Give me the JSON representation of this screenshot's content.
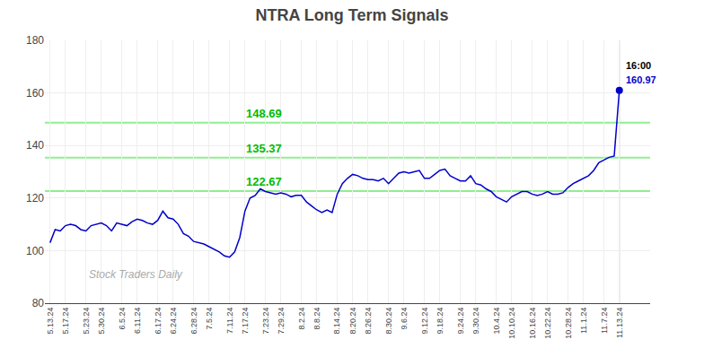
{
  "chart_data": {
    "type": "line",
    "title": "NTRA Long Term Signals",
    "categories": [
      "5.13.24",
      null,
      null,
      "5.17.24",
      null,
      null,
      null,
      "5.23.24",
      null,
      null,
      "5.30.24",
      null,
      null,
      null,
      "6.5.24",
      null,
      null,
      "6.11.24",
      null,
      null,
      null,
      "6.17.24",
      null,
      null,
      "6.24.24",
      null,
      null,
      null,
      "6.28.24",
      null,
      null,
      "7.5.24",
      null,
      null,
      null,
      "7.11.24",
      null,
      null,
      "7.17.24",
      null,
      null,
      null,
      "7.23.24",
      null,
      null,
      "7.29.24",
      null,
      null,
      null,
      "8.2.24",
      null,
      null,
      "8.8.24",
      null,
      null,
      null,
      "8.14.24",
      null,
      null,
      "8.20.24",
      null,
      null,
      "8.26.24",
      null,
      null,
      null,
      "8.30.24",
      null,
      null,
      "9.6.24",
      null,
      null,
      null,
      "9.12.24",
      null,
      null,
      "9.18.24",
      null,
      null,
      null,
      "9.24.24",
      null,
      null,
      "9.30.24",
      null,
      null,
      null,
      "10.4.24",
      null,
      null,
      "10.10.24",
      null,
      null,
      null,
      "10.16.24",
      null,
      null,
      "10.22.24",
      null,
      null,
      null,
      "10.28.24",
      null,
      null,
      "11.1.24",
      null,
      null,
      null,
      "11.7.24",
      null,
      null,
      "11.13.24"
    ],
    "values": [
      103.0,
      108.0,
      107.5,
      109.5,
      110.0,
      109.5,
      108.0,
      107.5,
      109.5,
      110.0,
      110.5,
      109.5,
      107.5,
      110.5,
      110.0,
      109.5,
      111.0,
      112.0,
      111.5,
      110.5,
      110.0,
      111.5,
      115.0,
      112.5,
      112.0,
      110.0,
      106.5,
      105.5,
      103.5,
      103.0,
      102.5,
      101.5,
      100.5,
      99.5,
      98.0,
      97.5,
      99.5,
      105.0,
      115.0,
      120.0,
      121.0,
      123.5,
      122.5,
      122.0,
      121.5,
      122.0,
      121.5,
      120.5,
      121.0,
      121.0,
      118.5,
      117.0,
      115.5,
      114.5,
      115.5,
      114.5,
      121.5,
      125.5,
      127.5,
      129.0,
      128.5,
      127.5,
      127.0,
      127.0,
      126.5,
      127.5,
      125.5,
      127.5,
      129.5,
      130.0,
      129.5,
      130.0,
      130.5,
      127.5,
      127.5,
      129.0,
      130.5,
      131.0,
      128.5,
      127.5,
      126.5,
      126.5,
      128.5,
      125.5,
      125.0,
      123.5,
      122.5,
      120.5,
      119.5,
      118.5,
      120.5,
      121.5,
      122.5,
      122.5,
      121.5,
      121.0,
      121.5,
      122.5,
      121.5,
      121.5,
      122.0,
      124.0,
      125.5,
      126.5,
      127.5,
      128.5,
      130.5,
      133.5,
      134.5,
      135.5,
      136.0,
      161.0
    ],
    "color": "#0000cc",
    "ylim": [
      80,
      180
    ],
    "yticks": [
      80,
      100,
      120,
      140,
      160,
      180
    ],
    "grid": true,
    "reference_lines": [
      {
        "value": 122.67,
        "label": "122.67",
        "color": "#90ee90",
        "label_color": "#00bb00"
      },
      {
        "value": 135.37,
        "label": "135.37",
        "color": "#90ee90",
        "label_color": "#00bb00"
      },
      {
        "value": 148.69,
        "label": "148.69",
        "color": "#90ee90",
        "label_color": "#00bb00"
      }
    ],
    "annotations": [
      {
        "text": "16:00",
        "color": "#000000"
      },
      {
        "text": "160.97",
        "color": "#0000cc"
      }
    ],
    "watermark": {
      "text": "Stock Traders Daily",
      "color": "#aaaaaa"
    }
  }
}
